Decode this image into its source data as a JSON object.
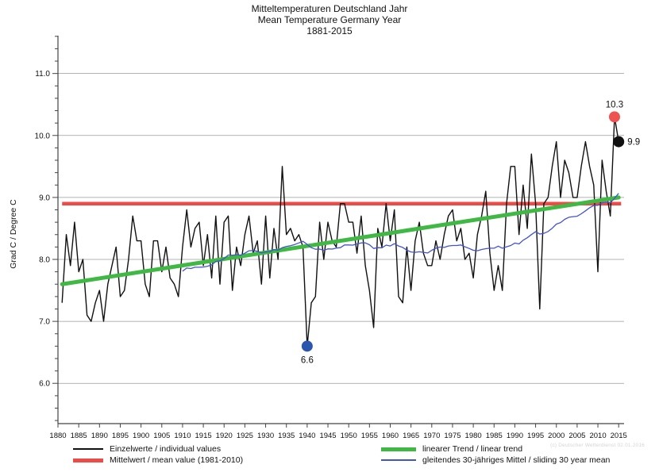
{
  "title": {
    "line1": "Mitteltemperaturen Deutschland Jahr",
    "line2": "Mean Temperature Germany Year",
    "line3": "1881-2015"
  },
  "ylabel": "Grad C / Degree C",
  "copyright": "(c) Deutscher Wetterdienst 02.01.2016",
  "legend": {
    "individual": "Einzelwerte / individual values",
    "mean": "Mittelwert / mean value (1981-2010)",
    "trend": "linearer Trend / linear trend",
    "sliding": "gleitendes 30-jähriges Mittel / sliding 30 year mean"
  },
  "colors": {
    "individual": "#111111",
    "mean": "#ee4b47",
    "trend": "#3fb944",
    "sliding": "#4353cc",
    "dot_max": "#ef5350",
    "dot_last": "#111111",
    "dot_min": "#2b56ae",
    "grid": "#9a9a9a",
    "axis": "#444444"
  },
  "chart_data": {
    "type": "line",
    "title": "Mitteltemperaturen Deutschland Jahr / Mean Temperature Germany Year 1881-2015",
    "xlabel": "",
    "ylabel": "Grad C / Degree C",
    "xlim": [
      1880,
      2016
    ],
    "ylim": [
      5.4,
      11.6
    ],
    "grid": "horizontal-major",
    "legend_position": "bottom",
    "x_tick_labels": [
      "1880",
      "1885",
      "1890",
      "1895",
      "1900",
      "1905",
      "1910",
      "1915",
      "1920",
      "1925",
      "1930",
      "1935",
      "1940",
      "1945",
      "1950",
      "1955",
      "1960",
      "1965",
      "1970",
      "1975",
      "1980",
      "1985",
      "1990",
      "1995",
      "2000",
      "2005",
      "2010",
      "2015"
    ],
    "y_major_ticks": [
      6,
      7,
      8,
      9,
      10,
      11
    ],
    "y_tick_labels": [
      "6.0",
      "7.0",
      "8.0",
      "9.0",
      "10.0",
      "11.0"
    ],
    "y_minor_step": 0.2,
    "series": [
      {
        "name": "Einzelwerte / individual values",
        "type": "annual-values",
        "color": "#111111",
        "start_year": 1881,
        "values": [
          7.3,
          8.4,
          7.9,
          8.6,
          7.8,
          8.0,
          7.1,
          7.0,
          7.3,
          7.5,
          7.0,
          7.6,
          7.9,
          8.2,
          7.4,
          7.5,
          8.0,
          8.7,
          8.3,
          8.3,
          7.6,
          7.4,
          8.3,
          8.3,
          7.8,
          8.2,
          7.7,
          7.6,
          7.4,
          8.2,
          8.8,
          8.2,
          8.5,
          8.6,
          7.9,
          8.4,
          7.7,
          8.7,
          7.6,
          8.6,
          8.7,
          7.5,
          8.2,
          7.9,
          8.4,
          8.7,
          8.1,
          8.3,
          7.6,
          8.7,
          7.7,
          8.5,
          8.0,
          9.5,
          8.4,
          8.5,
          8.3,
          8.4,
          8.2,
          6.6,
          7.3,
          7.4,
          8.6,
          8.0,
          8.6,
          8.3,
          8.2,
          8.9,
          8.9,
          8.6,
          8.6,
          8.1,
          8.7,
          7.9,
          7.5,
          6.9,
          8.5,
          8.2,
          8.9,
          8.3,
          8.8,
          7.4,
          7.3,
          8.2,
          7.5,
          8.3,
          8.6,
          8.1,
          7.9,
          7.9,
          8.3,
          8.0,
          8.4,
          8.7,
          8.8,
          8.3,
          8.5,
          8.0,
          8.1,
          7.7,
          8.4,
          8.7,
          9.1,
          8.1,
          7.5,
          7.9,
          7.5,
          8.9,
          9.5,
          9.5,
          8.4,
          9.2,
          8.5,
          9.7,
          8.9,
          7.2,
          8.9,
          9.0,
          9.5,
          9.9,
          9.0,
          9.6,
          9.4,
          9.0,
          9.0,
          9.5,
          9.9,
          9.5,
          9.2,
          7.8,
          9.6,
          9.1,
          8.7,
          10.3,
          9.9
        ]
      },
      {
        "name": "Mittelwert / mean value (1981-2010)",
        "type": "constant",
        "color": "#ee4b47",
        "value": 8.9,
        "span": [
          1881,
          2015.6
        ]
      },
      {
        "name": "linearer Trend / linear trend",
        "type": "trend",
        "color": "#3fb944",
        "start": {
          "year": 1881,
          "value": 7.6
        },
        "end": {
          "year": 2015,
          "value": 9.0
        }
      },
      {
        "name": "gleitendes 30-jähriges Mittel / sliding 30 year mean",
        "type": "sliding-mean",
        "color": "#4353cc",
        "window": 30,
        "derived_from": "Einzelwerte / individual values"
      }
    ],
    "annotations": [
      {
        "year": 2014,
        "value": 10.3,
        "label": "10.3",
        "dot_color": "#ef5350",
        "label_pos": "above"
      },
      {
        "year": 2015,
        "value": 9.9,
        "label": "9.9",
        "dot_color": "#111111",
        "label_pos": "right"
      },
      {
        "year": 1940,
        "value": 6.6,
        "label": "6.6",
        "dot_color": "#2b56ae",
        "label_pos": "below"
      }
    ]
  }
}
